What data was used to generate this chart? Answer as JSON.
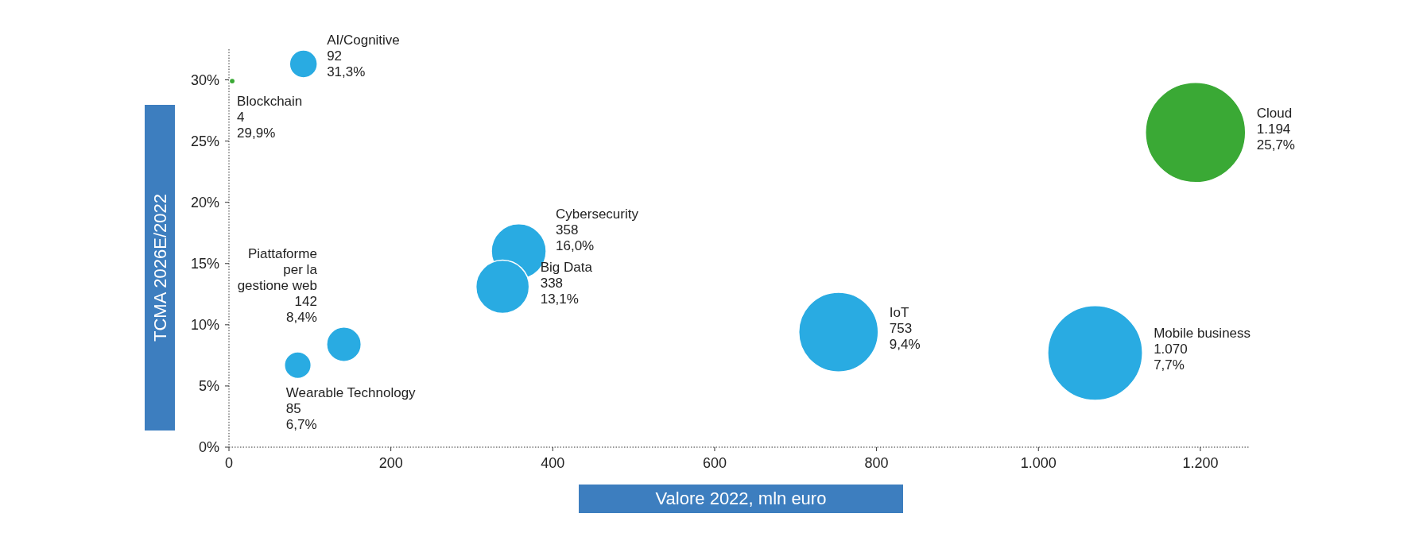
{
  "chart_data": {
    "type": "bubble",
    "xlabel": "Valore 2022, mln euro",
    "ylabel": "TCMA 2026E/2022",
    "xlim": [
      0,
      1260
    ],
    "ylim": [
      0,
      32.5
    ],
    "xticks": [
      0,
      200,
      400,
      600,
      800,
      {
        "value": 1000,
        "label": "1.000"
      },
      {
        "value": 1200,
        "label": "1.200"
      }
    ],
    "yticks": [
      {
        "value": 0,
        "label": "0%"
      },
      {
        "value": 5,
        "label": "5%"
      },
      {
        "value": 10,
        "label": "10%"
      },
      {
        "value": 15,
        "label": "15%"
      },
      {
        "value": 20,
        "label": "20%"
      },
      {
        "value": 25,
        "label": "25%"
      },
      {
        "value": 30,
        "label": "30%"
      }
    ],
    "grid": false,
    "series": [
      {
        "x": [
          92,
          4,
          142,
          85,
          358,
          338,
          753,
          1070,
          1194
        ],
        "values": [
          31.3,
          29.9,
          8.4,
          6.7,
          16.0,
          13.1,
          9.4,
          7.7,
          25.7
        ],
        "sizes": [
          0.077,
          0.0034,
          0.119,
          0.071,
          0.3,
          0.283,
          0.631,
          0.896,
          1
        ],
        "colors": [
          "#29abe2",
          "#3aa935",
          "#29abe2",
          "#29abe2",
          "#29abe2",
          "#29abe2",
          "#29abe2",
          "#29abe2",
          "#3aa935"
        ],
        "value_labels": [
          "AI/Cognitive\n92\n31,3%",
          "Blockchain\n4\n29,9%",
          "Piattaforme\nper la\ngestione web\n142\n8,4%",
          "Wearable Technology\n85\n6,7%",
          "Cybersecurity\n358\n16,0%",
          "Big Data\n338\n13,1%",
          "IoT\n753\n9,4%",
          "Mobile business\n1.070\n7,7%",
          "Cloud\n1.194\n25,7%"
        ]
      }
    ]
  }
}
